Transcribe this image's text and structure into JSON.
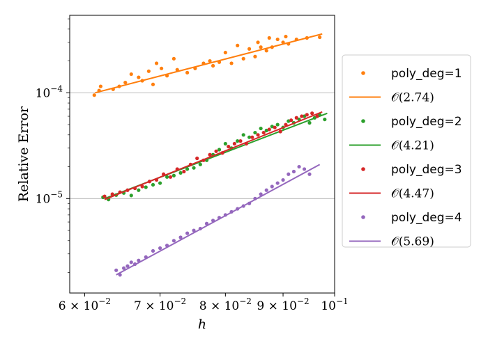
{
  "chart_data": {
    "type": "scatter",
    "xlabel": "h",
    "ylabel": "Relative Error",
    "xscale": "log",
    "yscale": "log",
    "xlim": [
      0.0582,
      0.1
    ],
    "ylim": [
      1.28e-06,
      0.00054
    ],
    "grid": "horizontal major lines",
    "legend_position": "right, outside plot",
    "x_tick_labels": [
      "6 × 10^-2",
      "7 × 10^-2",
      "8 × 10^-2",
      "9 × 10^-2",
      "10^-1"
    ],
    "y_tick_labels": [
      "10^-4",
      "10^-5"
    ],
    "series": [
      {
        "name": "poly_deg=1",
        "fit_label": "𝒪(2.74)",
        "color": "#ff7f0e",
        "fit": {
          "x": [
            0.0613,
            0.0975
          ],
          "y": [
            0.0001,
            0.00036
          ]
        },
        "points": [
          [
            0.0612,
            9.5e-05
          ],
          [
            0.0618,
            0.000105
          ],
          [
            0.062,
            0.000115
          ],
          [
            0.0636,
            0.000108
          ],
          [
            0.0644,
            0.000115
          ],
          [
            0.0652,
            0.000125
          ],
          [
            0.066,
            0.00015
          ],
          [
            0.067,
            0.00014
          ],
          [
            0.0675,
            0.00013
          ],
          [
            0.0684,
            0.00016
          ],
          [
            0.069,
            0.00012
          ],
          [
            0.0695,
            0.00019
          ],
          [
            0.0702,
            0.00017
          ],
          [
            0.071,
            0.000145
          ],
          [
            0.072,
            0.00021
          ],
          [
            0.0725,
            0.000165
          ],
          [
            0.074,
            0.000155
          ],
          [
            0.0752,
            0.00017
          ],
          [
            0.0765,
            0.00019
          ],
          [
            0.0775,
            0.0002
          ],
          [
            0.078,
            0.00018
          ],
          [
            0.079,
            0.000195
          ],
          [
            0.08,
            0.00024
          ],
          [
            0.081,
            0.00019
          ],
          [
            0.082,
            0.00028
          ],
          [
            0.083,
            0.00021
          ],
          [
            0.084,
            0.00026
          ],
          [
            0.085,
            0.00022
          ],
          [
            0.0855,
            0.0003
          ],
          [
            0.086,
            0.00027
          ],
          [
            0.087,
            0.00025
          ],
          [
            0.0875,
            0.00033
          ],
          [
            0.088,
            0.00027
          ],
          [
            0.089,
            0.00032
          ],
          [
            0.09,
            0.0003
          ],
          [
            0.0905,
            0.00034
          ],
          [
            0.091,
            0.00029
          ],
          [
            0.0925,
            0.00032
          ],
          [
            0.0945,
            0.00033
          ],
          [
            0.097,
            0.000335
          ]
        ]
      },
      {
        "name": "poly_deg=2",
        "fit_label": "𝒪(4.21)",
        "color": "#2ca02c",
        "fit": {
          "x": [
            0.0625,
            0.0985
          ],
          "y": [
            1e-05,
            6.4e-05
          ]
        },
        "points": [
          [
            0.0623,
            1.03e-05
          ],
          [
            0.063,
            9.8e-06
          ],
          [
            0.064,
            1.08e-05
          ],
          [
            0.065,
            1.13e-05
          ],
          [
            0.066,
            1.07e-05
          ],
          [
            0.067,
            1.2e-05
          ],
          [
            0.068,
            1.28e-05
          ],
          [
            0.069,
            1.35e-05
          ],
          [
            0.07,
            1.4e-05
          ],
          [
            0.071,
            1.6e-05
          ],
          [
            0.072,
            1.65e-05
          ],
          [
            0.073,
            1.75e-05
          ],
          [
            0.074,
            1.9e-05
          ],
          [
            0.075,
            1.95e-05
          ],
          [
            0.076,
            2.1e-05
          ],
          [
            0.077,
            2.3e-05
          ],
          [
            0.078,
            2.6e-05
          ],
          [
            0.079,
            2.9e-05
          ],
          [
            0.08,
            3.3e-05
          ],
          [
            0.081,
            3e-05
          ],
          [
            0.082,
            3.5e-05
          ],
          [
            0.083,
            4e-05
          ],
          [
            0.084,
            3.8e-05
          ],
          [
            0.085,
            4.2e-05
          ],
          [
            0.086,
            4.6e-05
          ],
          [
            0.087,
            4.4e-05
          ],
          [
            0.088,
            4.8e-05
          ],
          [
            0.089,
            5e-05
          ],
          [
            0.09,
            4.7e-05
          ],
          [
            0.091,
            5.4e-05
          ],
          [
            0.092,
            5.2e-05
          ],
          [
            0.093,
            5.6e-05
          ],
          [
            0.094,
            6e-05
          ],
          [
            0.095,
            5.2e-05
          ],
          [
            0.096,
            5.8e-05
          ],
          [
            0.097,
            6.2e-05
          ],
          [
            0.098,
            5.6e-05
          ]
        ]
      },
      {
        "name": "poly_deg=3",
        "fit_label": "𝒪(4.47)",
        "color": "#d62728",
        "fit": {
          "x": [
            0.0625,
            0.0975
          ],
          "y": [
            9.8e-06,
            6.6e-05
          ]
        },
        "points": [
          [
            0.0625,
            1.05e-05
          ],
          [
            0.0635,
            1.1e-05
          ],
          [
            0.0645,
            1.15e-05
          ],
          [
            0.0655,
            1.2e-05
          ],
          [
            0.0665,
            1.25e-05
          ],
          [
            0.0675,
            1.3e-05
          ],
          [
            0.0685,
            1.45e-05
          ],
          [
            0.0695,
            1.5e-05
          ],
          [
            0.0705,
            1.7e-05
          ],
          [
            0.0715,
            1.6e-05
          ],
          [
            0.0725,
            1.9e-05
          ],
          [
            0.0735,
            1.8e-05
          ],
          [
            0.0745,
            2.1e-05
          ],
          [
            0.0755,
            2.4e-05
          ],
          [
            0.0765,
            2.3e-05
          ],
          [
            0.0775,
            2.6e-05
          ],
          [
            0.0785,
            2.8e-05
          ],
          [
            0.0795,
            2.7e-05
          ],
          [
            0.0805,
            3.1e-05
          ],
          [
            0.0815,
            3.3e-05
          ],
          [
            0.0825,
            3.5e-05
          ],
          [
            0.0835,
            3.3e-05
          ],
          [
            0.0845,
            3.8e-05
          ],
          [
            0.0855,
            4e-05
          ],
          [
            0.0865,
            4.2e-05
          ],
          [
            0.0875,
            4.5e-05
          ],
          [
            0.0885,
            4.7e-05
          ],
          [
            0.0895,
            4.3e-05
          ],
          [
            0.0905,
            5e-05
          ],
          [
            0.0915,
            5.5e-05
          ],
          [
            0.0925,
            5.8e-05
          ],
          [
            0.0935,
            6e-05
          ],
          [
            0.0945,
            6.2e-05
          ],
          [
            0.0955,
            6.4e-05
          ],
          [
            0.0965,
            6e-05
          ]
        ]
      },
      {
        "name": "poly_deg=4",
        "fit_label": "𝒪(5.69)",
        "color": "#9467bd",
        "fit": {
          "x": [
            0.064,
            0.097
          ],
          "y": [
            1.9e-06,
            2.1e-05
          ]
        },
        "points": [
          [
            0.064,
            2.1e-06
          ],
          [
            0.0645,
            1.9e-06
          ],
          [
            0.065,
            2.2e-06
          ],
          [
            0.0655,
            2.3e-06
          ],
          [
            0.066,
            2.5e-06
          ],
          [
            0.0665,
            2.4e-06
          ],
          [
            0.067,
            2.6e-06
          ],
          [
            0.068,
            2.8e-06
          ],
          [
            0.069,
            3.2e-06
          ],
          [
            0.07,
            3.4e-06
          ],
          [
            0.071,
            3.6e-06
          ],
          [
            0.072,
            4e-06
          ],
          [
            0.073,
            4.3e-06
          ],
          [
            0.074,
            4.7e-06
          ],
          [
            0.075,
            5e-06
          ],
          [
            0.076,
            5.2e-06
          ],
          [
            0.077,
            5.8e-06
          ],
          [
            0.078,
            6.2e-06
          ],
          [
            0.079,
            6.6e-06
          ],
          [
            0.08,
            7e-06
          ],
          [
            0.081,
            7.5e-06
          ],
          [
            0.082,
            8e-06
          ],
          [
            0.083,
            8.5e-06
          ],
          [
            0.084,
            9e-06
          ],
          [
            0.085,
            1e-05
          ],
          [
            0.086,
            1.1e-05
          ],
          [
            0.087,
            1.2e-05
          ],
          [
            0.088,
            1.3e-05
          ],
          [
            0.089,
            1.4e-05
          ],
          [
            0.09,
            1.5e-05
          ],
          [
            0.091,
            1.7e-05
          ],
          [
            0.092,
            1.8e-05
          ],
          [
            0.093,
            2e-05
          ],
          [
            0.094,
            1.9e-05
          ],
          [
            0.095,
            1.7e-05
          ]
        ]
      }
    ]
  }
}
